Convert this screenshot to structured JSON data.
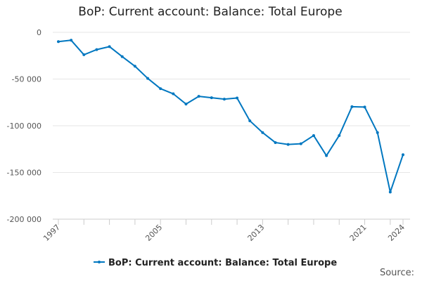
{
  "chart_data": {
    "type": "line",
    "title": "BoP: Current account: Balance: Total Europe",
    "xlabel": "",
    "ylabel": "",
    "x": [
      1997,
      1998,
      1999,
      2000,
      2001,
      2002,
      2003,
      2004,
      2005,
      2006,
      2007,
      2008,
      2009,
      2010,
      2011,
      2012,
      2013,
      2014,
      2015,
      2016,
      2017,
      2018,
      2019,
      2020,
      2021,
      2022,
      2023,
      2024
    ],
    "series": [
      {
        "name": "BoP: Current account: Balance: Total Europe",
        "color": "#0077c0",
        "values": [
          -10000,
          -8500,
          -24000,
          -18500,
          -15300,
          -26000,
          -36300,
          -49300,
          -60300,
          -65800,
          -76800,
          -68500,
          -70000,
          -71500,
          -70300,
          -94700,
          -107300,
          -118000,
          -120000,
          -119300,
          -110500,
          -132000,
          -110500,
          -79600,
          -80000,
          -107300,
          -171000,
          -131000
        ]
      }
    ],
    "ylim": [
      -200000,
      0
    ],
    "y_ticks": [
      0,
      -50000,
      -100000,
      -150000,
      -200000
    ],
    "y_tick_labels": [
      "0",
      "-50 000",
      "-100 000",
      "-150 000",
      "-200 000"
    ],
    "x_tick_labels": [
      "1997",
      "2005",
      "2013",
      "2021",
      "2024"
    ],
    "grid": "horizontal",
    "legend_position": "bottom"
  },
  "footer": {
    "source_label": "Source:"
  }
}
